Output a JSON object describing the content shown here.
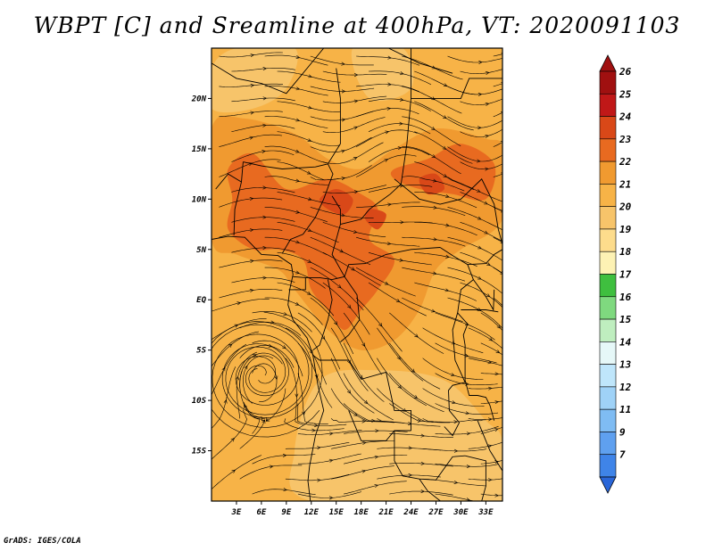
{
  "title": "WBPT [C] and Sreamline at 400hPa, VT: 2020091103",
  "credit": "GrADS: IGES/COLA",
  "map": {
    "lon_range": [
      0,
      35
    ],
    "lat_range": [
      -20,
      25
    ],
    "lat_labels": [
      {
        "lat": 20,
        "label": "20N"
      },
      {
        "lat": 15,
        "label": "15N"
      },
      {
        "lat": 10,
        "label": "10N"
      },
      {
        "lat": 5,
        "label": "5N"
      },
      {
        "lat": 0,
        "label": "EQ"
      },
      {
        "lat": -5,
        "label": "5S"
      },
      {
        "lat": -10,
        "label": "10S"
      },
      {
        "lat": -15,
        "label": "15S"
      }
    ],
    "lon_labels": [
      {
        "lon": 3,
        "label": "3E"
      },
      {
        "lon": 6,
        "label": "6E"
      },
      {
        "lon": 9,
        "label": "9E"
      },
      {
        "lon": 12,
        "label": "12E"
      },
      {
        "lon": 15,
        "label": "15E"
      },
      {
        "lon": 18,
        "label": "18E"
      },
      {
        "lon": 21,
        "label": "21E"
      },
      {
        "lon": 24,
        "label": "24E"
      },
      {
        "lon": 27,
        "label": "27E"
      },
      {
        "lon": 30,
        "label": "30E"
      },
      {
        "lon": 33,
        "label": "33E"
      }
    ],
    "background_color": "#f7b347",
    "shaded_regions": [
      {
        "color": "#f09a30",
        "value": "21-22",
        "lonlat": [
          [
            0,
            17
          ],
          [
            4,
            18
          ],
          [
            10,
            16.5
          ],
          [
            14,
            14
          ],
          [
            18,
            13
          ],
          [
            22,
            15
          ],
          [
            27,
            17
          ],
          [
            33,
            16
          ],
          [
            35,
            15
          ],
          [
            35,
            8
          ],
          [
            30,
            5
          ],
          [
            27,
            3
          ],
          [
            25,
            -1
          ],
          [
            22,
            -4
          ],
          [
            18,
            -5
          ],
          [
            14,
            -3
          ],
          [
            10,
            1
          ],
          [
            8,
            3
          ],
          [
            3,
            4.5
          ],
          [
            0,
            6
          ]
        ]
      },
      {
        "color": "#f7c46a",
        "value": "20-21",
        "lonlat": [
          [
            0,
            23
          ],
          [
            3,
            25
          ],
          [
            10,
            25
          ],
          [
            9,
            21
          ],
          [
            5,
            19
          ],
          [
            0,
            19
          ]
        ]
      },
      {
        "color": "#f7c46a",
        "value": "20-21",
        "lonlat": [
          [
            17,
            25
          ],
          [
            23,
            25
          ],
          [
            24,
            21
          ],
          [
            19,
            20
          ]
        ]
      },
      {
        "color": "#fddc8c",
        "value": "19-20",
        "lonlat": [
          [
            17,
            -14
          ],
          [
            22,
            -12
          ],
          [
            28,
            -14
          ],
          [
            31,
            -18
          ],
          [
            28,
            -20
          ],
          [
            20,
            -20
          ],
          [
            15,
            -19
          ]
        ]
      },
      {
        "color": "#f7c46a",
        "value": "20-21",
        "lonlat": [
          [
            13,
            -8
          ],
          [
            20,
            -7
          ],
          [
            28,
            -8
          ],
          [
            33,
            -12
          ],
          [
            35,
            -14
          ],
          [
            35,
            -20
          ],
          [
            12,
            -20
          ],
          [
            10,
            -15
          ]
        ]
      },
      {
        "color": "#e86a20",
        "value": "22-23",
        "lonlat": [
          [
            2,
            13
          ],
          [
            5,
            14.5
          ],
          [
            9,
            11
          ],
          [
            14,
            12
          ],
          [
            18,
            10.5
          ],
          [
            20,
            9
          ],
          [
            19,
            6
          ],
          [
            22,
            4
          ],
          [
            20,
            1
          ],
          [
            18,
            -1
          ],
          [
            16,
            -3
          ],
          [
            14,
            -1
          ],
          [
            12,
            1
          ],
          [
            11,
            4
          ],
          [
            8,
            5
          ],
          [
            5,
            5
          ],
          [
            2,
            7
          ],
          [
            2.5,
            10
          ]
        ]
      },
      {
        "color": "#e86a20",
        "value": "22-23",
        "lonlat": [
          [
            22,
            13
          ],
          [
            26,
            14
          ],
          [
            30,
            15.5
          ],
          [
            34,
            13.5
          ],
          [
            33,
            10
          ],
          [
            29,
            10.5
          ],
          [
            25,
            11
          ],
          [
            22,
            12
          ]
        ]
      },
      {
        "color": "#d94818",
        "value": "23-24",
        "lonlat": [
          [
            13,
            10
          ],
          [
            15,
            11
          ],
          [
            17,
            10
          ],
          [
            16,
            8.5
          ],
          [
            14,
            9
          ]
        ]
      },
      {
        "color": "#d94818",
        "value": "23-24",
        "lonlat": [
          [
            19,
            9
          ],
          [
            21,
            8.5
          ],
          [
            20,
            7
          ],
          [
            18.5,
            8
          ]
        ]
      },
      {
        "color": "#d94818",
        "value": "23-24",
        "lonlat": [
          [
            25,
            12
          ],
          [
            27,
            12.5
          ],
          [
            28,
            11
          ],
          [
            26,
            10.5
          ]
        ]
      }
    ],
    "vortex": {
      "lon": 6,
      "lat": -7.5
    }
  },
  "legend": {
    "levels": [
      {
        "label": "26",
        "color": "#a01010"
      },
      {
        "label": "25",
        "color": "#c01818"
      },
      {
        "label": "24",
        "color": "#d94818"
      },
      {
        "label": "23",
        "color": "#e86a20"
      },
      {
        "label": "22",
        "color": "#f09a30"
      },
      {
        "label": "21",
        "color": "#f7b347"
      },
      {
        "label": "20",
        "color": "#f7c46a"
      },
      {
        "label": "19",
        "color": "#fddc8c"
      },
      {
        "label": "18",
        "color": "#fdf2b4"
      },
      {
        "label": "17",
        "color": "#3fbf3f"
      },
      {
        "label": "16",
        "color": "#7fd97f"
      },
      {
        "label": "15",
        "color": "#bfeebf"
      },
      {
        "label": "14",
        "color": "#e6f8f8"
      },
      {
        "label": "13",
        "color": "#bfe6fb"
      },
      {
        "label": "12",
        "color": "#9fd2f7"
      },
      {
        "label": "11",
        "color": "#7fbcf3"
      },
      {
        "label": "9",
        "color": "#5fa0ef"
      },
      {
        "label": "7",
        "color": "#3f84e8"
      }
    ],
    "bottom_color": "#2a66d8"
  }
}
